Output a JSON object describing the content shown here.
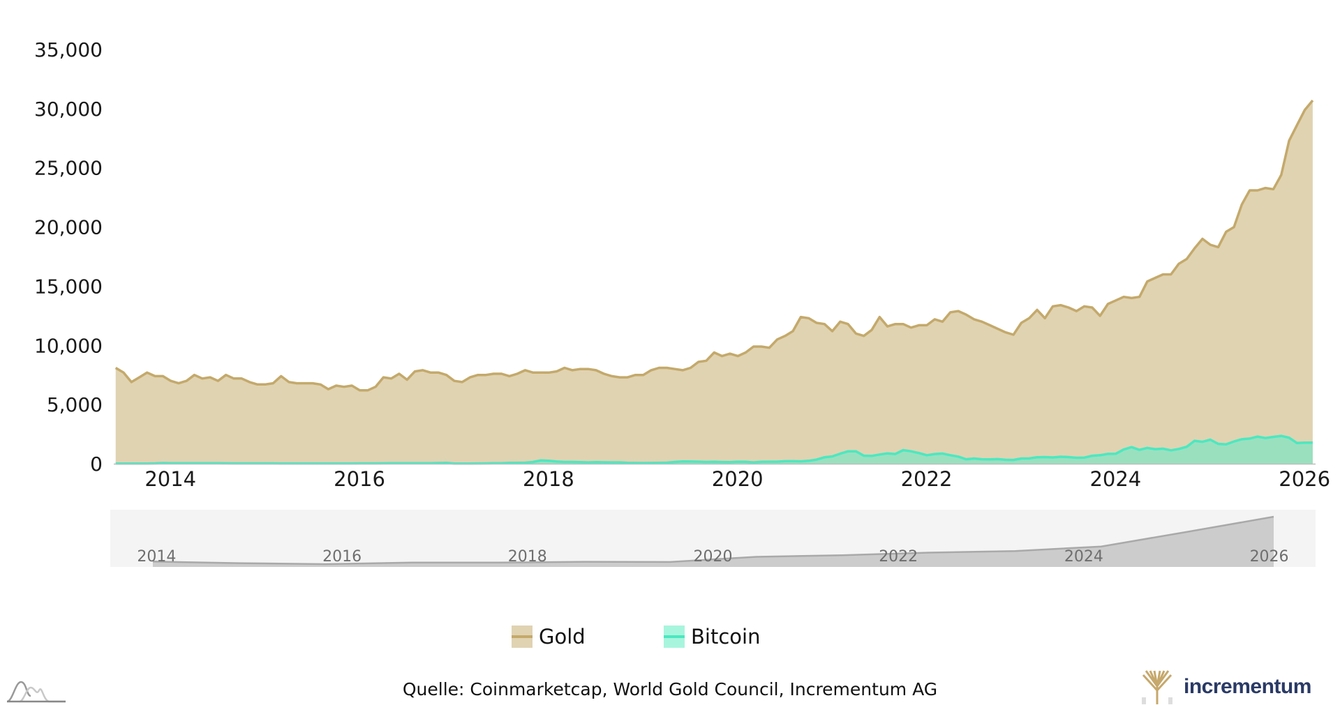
{
  "chart_data": {
    "type": "area",
    "title": "",
    "xlabel": "",
    "ylabel": "",
    "x_start": 2013.42,
    "x_step_months": 1,
    "xlim": [
      2013.4,
      2026.08
    ],
    "ylim": [
      0,
      35000
    ],
    "yticks": [
      "0",
      "5,000",
      "10,000",
      "15,000",
      "20,000",
      "25,000",
      "30,000",
      "35,000"
    ],
    "ytick_values": [
      0,
      5000,
      10000,
      15000,
      20000,
      25000,
      30000,
      35000
    ],
    "xticks": [
      "2014",
      "2016",
      "2018",
      "2020",
      "2022",
      "2024",
      "2026"
    ],
    "xtick_values": [
      2014,
      2016,
      2018,
      2020,
      2022,
      2024,
      2026
    ],
    "grid": false,
    "legend_position": "bottom-center",
    "series": [
      {
        "name": "Gold",
        "color": "#c4a96b",
        "fill": "#e0d3b2",
        "values": [
          8100,
          7700,
          6900,
          7300,
          7700,
          7400,
          7400,
          7000,
          6800,
          7000,
          7500,
          7200,
          7300,
          7000,
          7500,
          7200,
          7200,
          6900,
          6700,
          6700,
          6800,
          7400,
          6900,
          6800,
          6800,
          6800,
          6700,
          6300,
          6600,
          6500,
          6600,
          6200,
          6200,
          6500,
          7300,
          7200,
          7600,
          7100,
          7800,
          7900,
          7700,
          7700,
          7500,
          7000,
          6900,
          7300,
          7500,
          7500,
          7600,
          7600,
          7400,
          7600,
          7900,
          7700,
          7700,
          7700,
          7800,
          8100,
          7900,
          8000,
          8000,
          7900,
          7600,
          7400,
          7300,
          7300,
          7500,
          7500,
          7900,
          8100,
          8100,
          8000,
          7900,
          8100,
          8600,
          8700,
          9400,
          9100,
          9300,
          9100,
          9400,
          9900,
          9900,
          9800,
          10500,
          10800,
          11200,
          12400,
          12300,
          11900,
          11800,
          11200,
          12000,
          11800,
          11000,
          10800,
          11300,
          12400,
          11600,
          11800,
          11800,
          11500,
          11700,
          11700,
          12200,
          12000,
          12800,
          12900,
          12600,
          12200,
          12000,
          11700,
          11400,
          11100,
          10900,
          11900,
          12300,
          13000,
          12300,
          13300,
          13400,
          13200,
          12900,
          13300,
          13200,
          12500,
          13500,
          13800,
          14100,
          14000,
          14100,
          15400,
          15700,
          16000,
          16000,
          16900,
          17300,
          18200,
          19000,
          18500,
          18300,
          19600,
          20000,
          21900,
          23100,
          23100,
          23300,
          23200,
          24400,
          27300,
          28600,
          29900,
          30700
        ]
      },
      {
        "name": "Bitcoin",
        "color": "#4be8c0",
        "fill": "#9ae0bf",
        "values": [
          10,
          10,
          10,
          15,
          20,
          30,
          60,
          50,
          50,
          45,
          40,
          40,
          40,
          40,
          35,
          30,
          30,
          30,
          30,
          30,
          30,
          25,
          25,
          25,
          25,
          25,
          25,
          25,
          25,
          25,
          25,
          30,
          30,
          30,
          35,
          40,
          45,
          50,
          50,
          50,
          50,
          60,
          70,
          15,
          18,
          20,
          25,
          30,
          40,
          45,
          70,
          70,
          90,
          150,
          280,
          250,
          180,
          150,
          150,
          130,
          110,
          130,
          120,
          110,
          110,
          70,
          65,
          60,
          65,
          70,
          90,
          150,
          190,
          180,
          170,
          150,
          160,
          140,
          130,
          170,
          160,
          110,
          160,
          170,
          170,
          210,
          215,
          200,
          250,
          350,
          540,
          620,
          850,
          1050,
          1050,
          680,
          660,
          780,
          870,
          820,
          1150,
          1050,
          900,
          720,
          820,
          860,
          720,
          600,
          380,
          440,
          380,
          370,
          390,
          330,
          320,
          440,
          450,
          550,
          560,
          530,
          590,
          560,
          500,
          520,
          670,
          720,
          830,
          840,
          1200,
          1400,
          1170,
          1340,
          1230,
          1270,
          1130,
          1250,
          1430,
          1940,
          1850,
          2030,
          1680,
          1640,
          1880,
          2070,
          2130,
          2290,
          2170,
          2270,
          2350,
          2200,
          1750,
          1780,
          1780
        ]
      }
    ],
    "navigator": {
      "xlim": [
        2013.5,
        2026.5
      ],
      "xticks": [
        "2014",
        "2016",
        "2018",
        "2020",
        "2022",
        "2024",
        "2026"
      ],
      "xtick_values": [
        2014,
        2016,
        2018,
        2020,
        2022,
        2024,
        2026
      ]
    }
  },
  "legend": [
    {
      "label": "Gold",
      "swatch": "#e0d3b2",
      "line": "#c4a96b"
    },
    {
      "label": "Bitcoin",
      "swatch": "#a8f5dd",
      "line": "#4be8c0"
    }
  ],
  "source": "Quelle: Coinmarketcap, World Gold Council, Incrementum AG",
  "logo": {
    "text": "incrementum",
    "color": "#2a3a66",
    "tree_color": "#c6a86c"
  }
}
